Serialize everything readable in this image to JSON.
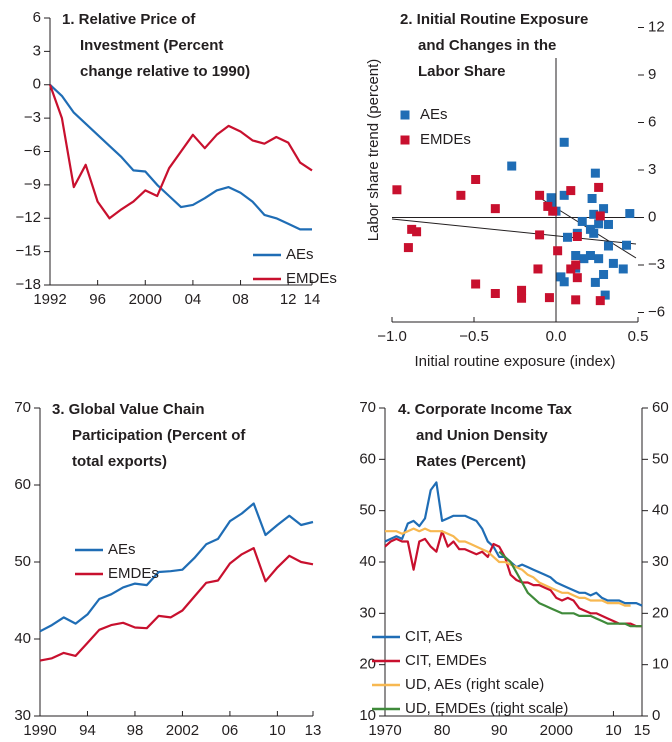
{
  "chart_data": [
    {
      "type": "line",
      "title": [
        "1. Relative Price of",
        "Investment (Percent",
        "change relative to 1990)"
      ],
      "x": [
        1992,
        1993,
        1994,
        1995,
        1996,
        1997,
        1998,
        1999,
        2000,
        2001,
        2002,
        2003,
        2004,
        2005,
        2006,
        2007,
        2008,
        2009,
        2010,
        2011,
        2012,
        2013,
        2014
      ],
      "xlim": [
        1992,
        2014
      ],
      "xticks": [
        1992,
        {
          "value": 1996,
          "label": "96"
        },
        2000,
        {
          "value": 2004,
          "label": "04"
        },
        {
          "value": 2008,
          "label": "08"
        },
        {
          "value": 2012,
          "label": "12"
        },
        {
          "value": 2014,
          "label": "14"
        }
      ],
      "ylim": [
        -18,
        6
      ],
      "yticks": [
        6,
        3,
        0,
        {
          "value": -3,
          "label": "−3"
        },
        {
          "value": -6,
          "label": "−6"
        },
        {
          "value": -9,
          "label": "−9"
        },
        {
          "value": -12,
          "label": "−12"
        },
        {
          "value": -15,
          "label": "−15"
        },
        {
          "value": -18,
          "label": "−18"
        }
      ],
      "legend": "lower right",
      "series": [
        {
          "name": "AEs",
          "color": "#1f6db5",
          "values": [
            0,
            -1,
            -2.5,
            -3.5,
            -4.5,
            -5.5,
            -6.5,
            -7.7,
            -7.8,
            -9,
            -10,
            -11,
            -10.8,
            -10.2,
            -9.5,
            -9.2,
            -9.7,
            -10.5,
            -11.7,
            -12,
            -12.5,
            -13,
            -13
          ]
        },
        {
          "name": "EMDEs",
          "color": "#c8102e",
          "values": [
            0,
            -3,
            -9.2,
            -7.2,
            -10.5,
            -12,
            -11.2,
            -10.5,
            -9.5,
            -10,
            -7.5,
            -6,
            -4.5,
            -5.7,
            -4.5,
            -3.7,
            -4.2,
            -5,
            -5.3,
            -4.7,
            -5.2,
            -7,
            -7.7
          ]
        }
      ]
    },
    {
      "type": "scatter",
      "title": [
        "2. Initial Routine Exposure",
        "and Changes in the",
        "Labor Share"
      ],
      "xlabel": "Initial routine exposure (index)",
      "ylabel": "Labor share trend (percent)",
      "xlim": [
        -1.0,
        0.5
      ],
      "xticks": [
        {
          "value": -1.0,
          "label": "−1.0"
        },
        {
          "value": -0.5,
          "label": "−0.5"
        },
        {
          "value": 0,
          "label": "0.0"
        },
        0.5
      ],
      "ylim": [
        -6.6,
        12.6
      ],
      "yticks": [
        12,
        9,
        6,
        3,
        0,
        {
          "value": -3,
          "label": "−3"
        },
        {
          "value": -6,
          "label": "−6"
        }
      ],
      "ytick_side": "right",
      "legend": "upper left",
      "series": [
        {
          "name": "AEs",
          "color": "#1f6db5",
          "x": [
            0.05,
            -0.27,
            0.24,
            -0.03,
            0.05,
            0.22,
            0.29,
            -0.03,
            0,
            0.45,
            0.23,
            0.16,
            0.26,
            0.32,
            0.21,
            0.13,
            0.07,
            0.23,
            0.43,
            0.12,
            0.21,
            0.32,
            0.17,
            0.26,
            0.35,
            0.12,
            0.41,
            0.29,
            0.05,
            0.24,
            0.03,
            0.3
          ],
          "values": [
            4.75,
            3.25,
            2.8,
            1.25,
            1.4,
            1.2,
            0.56,
            0.7,
            0.4,
            0.25,
            0.2,
            -0.25,
            -0.4,
            -0.44,
            -0.75,
            -1.0,
            -1.25,
            -1.0,
            -1.75,
            -2.4,
            -2.4,
            -1.8,
            -2.6,
            -2.6,
            -2.9,
            -3.2,
            -3.25,
            -3.6,
            -4.06,
            -4.1,
            -3.75,
            -4.9
          ]
        },
        {
          "name": "EMDEs",
          "color": "#c8102e",
          "x": [
            -0.97,
            -0.49,
            -0.58,
            -0.37,
            -0.88,
            -0.9,
            -0.85,
            -0.1,
            -0.05,
            -0.02,
            0.09,
            0.26,
            0.27,
            0.13,
            -0.1,
            0.01,
            -0.11,
            0.12,
            0.13,
            -0.49,
            -0.37,
            -0.21,
            -0.21,
            -0.04,
            0.12,
            0.27,
            0.09
          ],
          "values": [
            1.75,
            2.4,
            1.4,
            0.56,
            -0.75,
            -1.9,
            -0.9,
            1.4,
            0.7,
            0.4,
            1.7,
            1.9,
            0.1,
            -1.2,
            -1.1,
            -2.1,
            -3.25,
            -3.0,
            -3.8,
            -4.2,
            -4.8,
            -4.6,
            -5.1,
            -5.06,
            -5.2,
            -5.25,
            -3.25
          ]
        }
      ]
    },
    {
      "type": "line",
      "title": [
        "3. Global Value Chain",
        "Participation (Percent of",
        "total exports)"
      ],
      "x": [
        1990,
        1991,
        1992,
        1993,
        1994,
        1995,
        1996,
        1997,
        1998,
        1999,
        2000,
        2001,
        2002,
        2003,
        2004,
        2005,
        2006,
        2007,
        2008,
        2009,
        2010,
        2011,
        2012,
        2013
      ],
      "xlim": [
        1990,
        2013
      ],
      "xticks": [
        1990,
        {
          "value": 1994,
          "label": "94"
        },
        {
          "value": 1998,
          "label": "98"
        },
        2002,
        {
          "value": 2006,
          "label": "06"
        },
        {
          "value": 2010,
          "label": "10"
        },
        {
          "value": 2013,
          "label": "13"
        }
      ],
      "ylim": [
        30,
        70
      ],
      "yticks": [
        30,
        40,
        50,
        60,
        70
      ],
      "legend": "upper left",
      "series": [
        {
          "name": "AEs",
          "color": "#1f6db5",
          "values": [
            41,
            41.8,
            42.8,
            42,
            43.2,
            45.2,
            45.8,
            46.7,
            47.2,
            47,
            48.7,
            48.8,
            49,
            50.5,
            52.3,
            53,
            55.3,
            56.3,
            57.6,
            53.5,
            54.8,
            56,
            54.8,
            55.2
          ]
        },
        {
          "name": "EMDEs",
          "color": "#c8102e",
          "values": [
            37.2,
            37.5,
            38.2,
            37.8,
            39.5,
            41.2,
            41.8,
            42.1,
            41.5,
            41.4,
            43,
            42.8,
            43.7,
            45.5,
            47.3,
            47.6,
            49.8,
            51,
            51.8,
            47.5,
            49.3,
            50.8,
            50,
            49.7
          ]
        }
      ]
    },
    {
      "type": "line",
      "title": [
        "4. Corporate Income Tax",
        "and Union Density",
        "Rates (Percent)"
      ],
      "x": [
        1970,
        1971,
        1972,
        1973,
        1974,
        1975,
        1976,
        1977,
        1978,
        1979,
        1980,
        1981,
        1982,
        1983,
        1984,
        1985,
        1986,
        1987,
        1988,
        1989,
        1990,
        1991,
        1992,
        1993,
        1994,
        1995,
        1996,
        1997,
        1998,
        1999,
        2000,
        2001,
        2002,
        2003,
        2004,
        2005,
        2006,
        2007,
        2008,
        2009,
        2010,
        2011,
        2012,
        2013,
        2014,
        2015
      ],
      "xlim": [
        1970,
        2015
      ],
      "xticks": [
        1970,
        {
          "value": 1980,
          "label": "80"
        },
        {
          "value": 1990,
          "label": "90"
        },
        2000,
        {
          "value": 2010,
          "label": "10"
        },
        {
          "value": 2015,
          "label": "15"
        }
      ],
      "ylim": [
        10,
        70
      ],
      "yticks": [
        10,
        20,
        30,
        40,
        50,
        60,
        70
      ],
      "y2lim": [
        0,
        60
      ],
      "y2ticks": [
        0,
        10,
        20,
        30,
        40,
        50,
        60
      ],
      "legend": "lower left",
      "series": [
        {
          "name": "CIT, AEs",
          "color": "#1f6db5",
          "values": [
            44,
            44.5,
            45,
            44.5,
            47.5,
            48,
            47,
            48.5,
            54,
            55.5,
            48,
            48.5,
            49,
            49,
            49,
            48.5,
            48,
            46.5,
            44,
            43,
            41,
            41,
            40,
            39,
            39.5,
            39,
            38.5,
            38,
            37.5,
            37,
            36,
            35.5,
            35,
            34.5,
            34,
            34,
            33.5,
            34,
            33,
            32.5,
            32.5,
            32.5,
            32,
            32,
            32,
            31.5
          ]
        },
        {
          "name": "CIT, EMDEs",
          "color": "#c8102e",
          "values": [
            43,
            44,
            44.5,
            44,
            44,
            38.5,
            44,
            44.5,
            43,
            42,
            46,
            43,
            44,
            42.5,
            42.5,
            42,
            41.5,
            42,
            41,
            43.5,
            43,
            41,
            37.5,
            36.5,
            36,
            36,
            35.5,
            35.5,
            35,
            34.5,
            33,
            32.5,
            33,
            32.5,
            31,
            30.5,
            30,
            30,
            29.5,
            29,
            28.5,
            28,
            28,
            28,
            27.5,
            27.5
          ]
        },
        {
          "name": "UD, AEs (right scale)",
          "color": "#f7b851",
          "axis": "y2",
          "values": [
            36,
            36,
            36,
            35.5,
            36,
            36.5,
            36,
            36.5,
            36,
            36,
            36,
            35.5,
            35,
            34,
            34,
            33.5,
            33,
            32.5,
            32,
            31,
            30,
            30,
            29.5,
            29,
            28.5,
            27.5,
            27,
            26,
            25.5,
            25,
            24.5,
            24,
            24,
            23.5,
            23,
            23,
            22.5,
            22.5,
            22.5,
            22,
            22,
            22,
            21.5,
            21.5,
            null,
            null
          ]
        },
        {
          "name": "UD, EMDEs (right scale)",
          "color": "#3f8a3a",
          "axis": "y2",
          "values": [
            null,
            null,
            null,
            null,
            null,
            null,
            null,
            null,
            null,
            null,
            null,
            null,
            null,
            null,
            null,
            null,
            null,
            null,
            null,
            null,
            32,
            31,
            30,
            28,
            26,
            24,
            23,
            22,
            21.5,
            21,
            20.5,
            20,
            20,
            20,
            19.5,
            19.5,
            19.5,
            19,
            18.5,
            18,
            18,
            18,
            18,
            17.5,
            17.5,
            17.5
          ]
        }
      ]
    }
  ]
}
